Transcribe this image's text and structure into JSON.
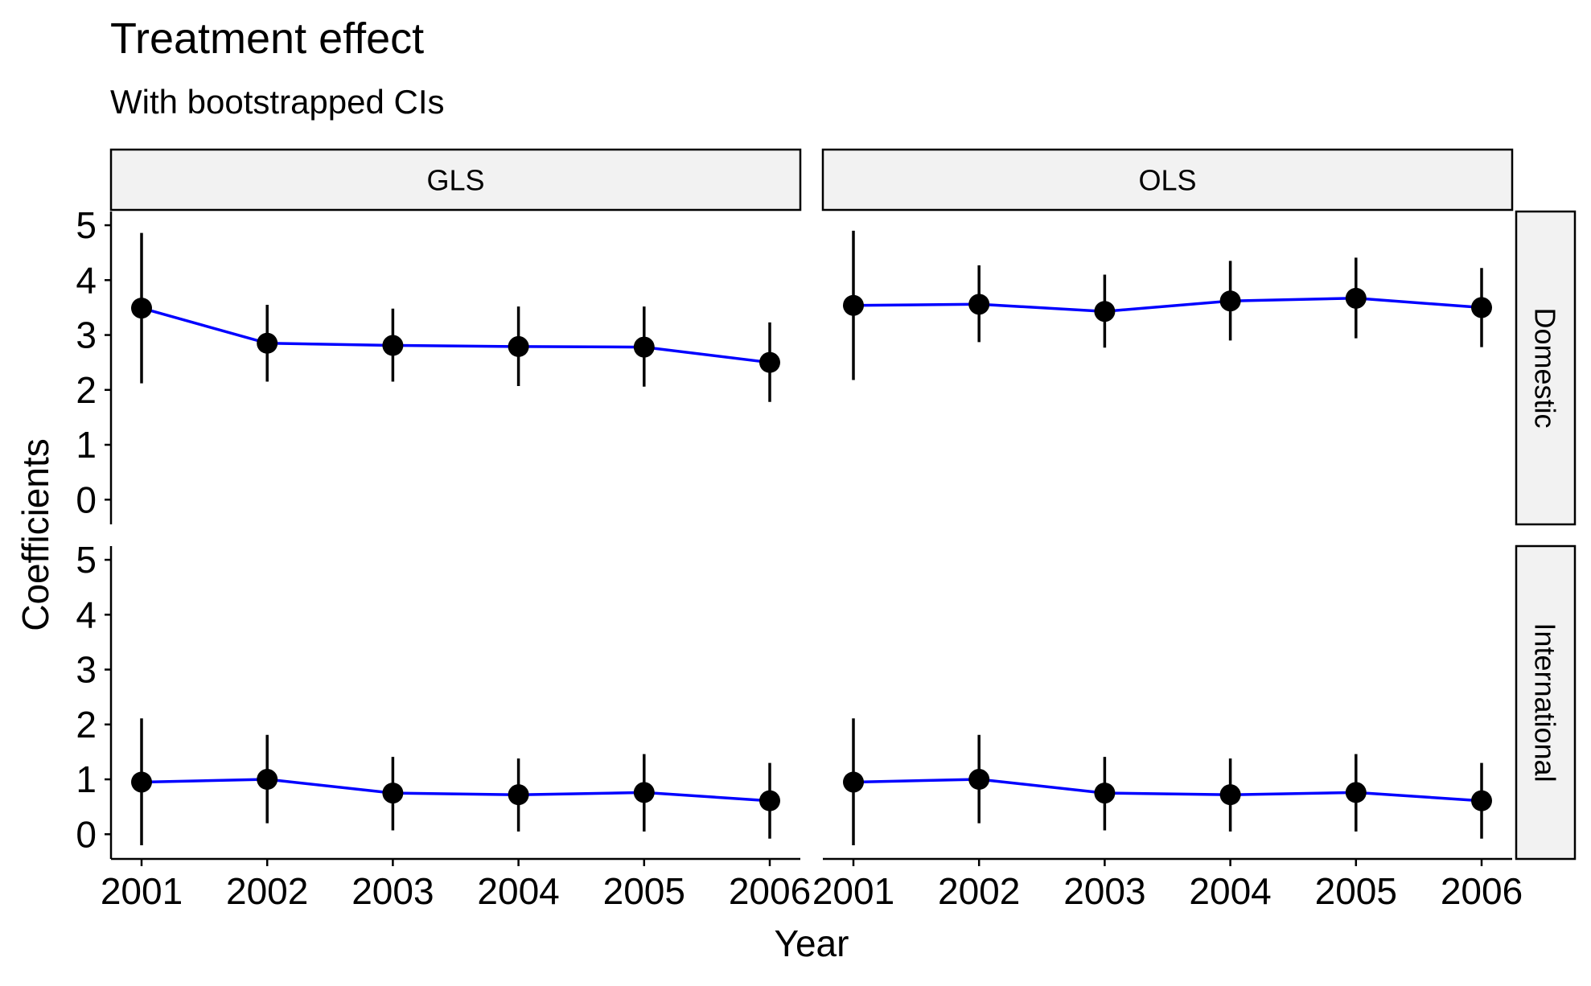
{
  "chart_data": {
    "type": "line",
    "title": "Treatment effect",
    "subtitle": "With bootstrapped CIs",
    "xlabel": "Year",
    "ylabel": "Coefficients",
    "x": [
      "2001",
      "2002",
      "2003",
      "2004",
      "2005",
      "2006"
    ],
    "ylim": [
      -0.45,
      5.25
    ],
    "yticks": [
      0,
      1,
      2,
      3,
      4,
      5
    ],
    "column_facets": [
      "GLS",
      "OLS"
    ],
    "row_facets": [
      "Domestic",
      "International"
    ],
    "line_color": "#0000ff",
    "point_color": "#000000",
    "panels": [
      {
        "column": "GLS",
        "row": "Domestic",
        "estimate": [
          3.49,
          2.85,
          2.81,
          2.79,
          2.78,
          2.5
        ],
        "ci_low": [
          2.12,
          2.15,
          2.15,
          2.07,
          2.06,
          1.78
        ],
        "ci_high": [
          4.86,
          3.55,
          3.48,
          3.52,
          3.52,
          3.23
        ]
      },
      {
        "column": "OLS",
        "row": "Domestic",
        "estimate": [
          3.54,
          3.56,
          3.43,
          3.62,
          3.67,
          3.5
        ],
        "ci_low": [
          2.18,
          2.87,
          2.77,
          2.9,
          2.94,
          2.78
        ],
        "ci_high": [
          4.9,
          4.27,
          4.1,
          4.35,
          4.41,
          4.22
        ]
      },
      {
        "column": "GLS",
        "row": "International",
        "estimate": [
          0.95,
          1.0,
          0.75,
          0.72,
          0.76,
          0.61
        ],
        "ci_low": [
          -0.2,
          0.2,
          0.07,
          0.05,
          0.05,
          -0.08
        ],
        "ci_high": [
          2.11,
          1.81,
          1.41,
          1.38,
          1.46,
          1.3
        ]
      },
      {
        "column": "OLS",
        "row": "International",
        "estimate": [
          0.95,
          1.0,
          0.75,
          0.72,
          0.76,
          0.61
        ],
        "ci_low": [
          -0.2,
          0.2,
          0.07,
          0.05,
          0.05,
          -0.08
        ],
        "ci_high": [
          2.11,
          1.81,
          1.41,
          1.38,
          1.46,
          1.3
        ]
      }
    ]
  }
}
